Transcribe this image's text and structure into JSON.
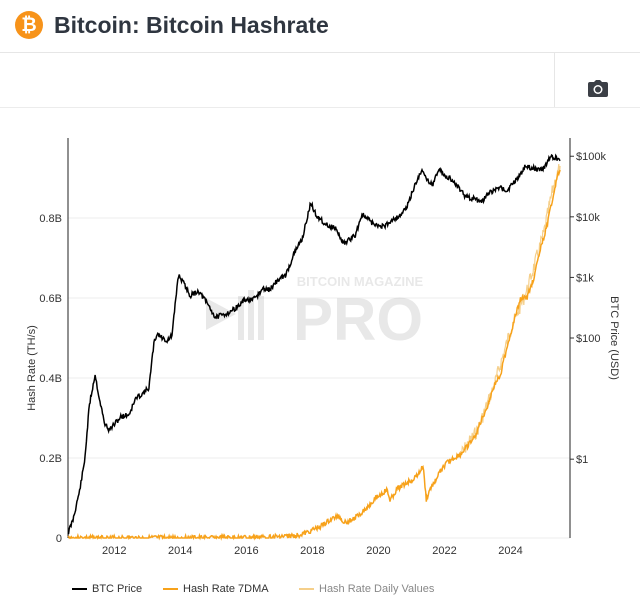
{
  "header": {
    "logo_glyph": "₿",
    "title": "Bitcoin: Bitcoin Hashrate"
  },
  "toolbar": {
    "camera_icon": "camera-icon"
  },
  "watermark": {
    "line1": "BITCOIN MAGAZINE",
    "line2": "PRO"
  },
  "legend": {
    "btc_price": "BTC Price",
    "hash_rate_7dma": "Hash Rate 7DMA",
    "hash_rate_daily": "Hash Rate Daily Values"
  },
  "chart_data": {
    "type": "line",
    "title": "Bitcoin: Bitcoin Hashrate",
    "xlabel": "",
    "ylabel": "Hash Rate (TH/s)",
    "y2label": "BTC Price (USD)",
    "x_ticks": [
      "2012",
      "2014",
      "2016",
      "2018",
      "2020",
      "2022",
      "2024"
    ],
    "y_ticks": [
      "0",
      "0.2B",
      "0.4B",
      "0.6B",
      "0.8B"
    ],
    "y2_ticks": [
      "$1",
      "$100",
      "$1k",
      "$10k",
      "$100k"
    ],
    "y2_scale": "log",
    "xlim": [
      2010.6,
      2025.8
    ],
    "ylim": [
      0,
      1.0
    ],
    "y2lim": [
      0.05,
      200000
    ],
    "grid": true,
    "legend_position": "bottom",
    "colors": {
      "btc_price": "#000000",
      "hash_rate_7dma": "#f7a21b",
      "hash_rate_daily": "#f5cf8a"
    },
    "series": [
      {
        "name": "BTC Price",
        "axis": "right",
        "x": [
          2010.6,
          2010.75,
          2010.95,
          2011.1,
          2011.25,
          2011.42,
          2011.55,
          2011.7,
          2011.85,
          2011.95,
          2012.2,
          2012.45,
          2012.65,
          2012.85,
          2013.05,
          2013.2,
          2013.3,
          2013.45,
          2013.6,
          2013.75,
          2013.9,
          2013.95,
          2014.1,
          2014.3,
          2014.55,
          2014.85,
          2015.0,
          2015.05,
          2015.3,
          2015.5,
          2015.8,
          2015.95,
          2016.2,
          2016.4,
          2016.5,
          2016.7,
          2016.95,
          2017.2,
          2017.45,
          2017.7,
          2017.95,
          2018.1,
          2018.3,
          2018.5,
          2018.7,
          2018.9,
          2019.0,
          2019.3,
          2019.5,
          2019.7,
          2019.9,
          2020.2,
          2020.4,
          2020.6,
          2020.85,
          2021.1,
          2021.3,
          2021.5,
          2021.65,
          2021.85,
          2022.0,
          2022.2,
          2022.45,
          2022.65,
          2022.9,
          2023.1,
          2023.3,
          2023.5,
          2023.7,
          2023.9,
          2024.1,
          2024.2,
          2024.45,
          2024.7,
          2024.9,
          2025.05,
          2025.2,
          2025.35,
          2025.5
        ],
        "values": [
          0.06,
          0.1,
          0.3,
          0.9,
          8,
          25,
          10,
          4,
          3,
          3.5,
          5,
          5.5,
          10,
          12,
          15,
          80,
          120,
          100,
          90,
          110,
          700,
          1100,
          800,
          500,
          600,
          350,
          250,
          220,
          240,
          270,
          350,
          430,
          420,
          550,
          650,
          620,
          900,
          1100,
          2500,
          4500,
          17000,
          11000,
          8500,
          7000,
          6500,
          4000,
          3700,
          5000,
          11000,
          9000,
          7200,
          7000,
          9000,
          10000,
          14000,
          33000,
          58000,
          40000,
          35000,
          63000,
          47000,
          42000,
          30000,
          21000,
          20000,
          17000,
          23000,
          28000,
          30000,
          27000,
          37000,
          43000,
          68000,
          63000,
          58000,
          70000,
          98000,
          96000,
          84000
        ]
      },
      {
        "name": "Hash Rate 7DMA",
        "axis": "left",
        "x": [
          2010.6,
          2012,
          2013,
          2014,
          2015,
          2016,
          2017,
          2017.5,
          2017.8,
          2018.0,
          2018.2,
          2018.45,
          2018.65,
          2018.8,
          2018.95,
          2019.1,
          2019.3,
          2019.5,
          2019.7,
          2019.9,
          2020.1,
          2020.25,
          2020.35,
          2020.6,
          2020.9,
          2021.1,
          2021.25,
          2021.35,
          2021.45,
          2021.55,
          2021.7,
          2021.9,
          2022.1,
          2022.3,
          2022.5,
          2022.7,
          2022.9,
          2023.1,
          2023.3,
          2023.5,
          2023.7,
          2023.9,
          2024.1,
          2024.3,
          2024.5,
          2024.7,
          2024.9,
          2025.1,
          2025.2,
          2025.3,
          2025.4,
          2025.5
        ],
        "values": [
          0.0,
          0.0,
          0.0,
          0.0,
          0.0,
          0.001,
          0.003,
          0.006,
          0.012,
          0.02,
          0.027,
          0.04,
          0.05,
          0.055,
          0.04,
          0.042,
          0.05,
          0.065,
          0.08,
          0.1,
          0.11,
          0.12,
          0.095,
          0.125,
          0.14,
          0.15,
          0.165,
          0.18,
          0.095,
          0.12,
          0.14,
          0.17,
          0.19,
          0.2,
          0.21,
          0.23,
          0.25,
          0.29,
          0.33,
          0.38,
          0.41,
          0.48,
          0.54,
          0.6,
          0.6,
          0.65,
          0.72,
          0.78,
          0.82,
          0.86,
          0.9,
          0.92
        ]
      },
      {
        "name": "Hash Rate Daily Values",
        "axis": "left",
        "x": [
          2022.5,
          2023.0,
          2023.5,
          2024.0,
          2024.5,
          2025.0,
          2025.3,
          2025.5
        ],
        "values": [
          0.21,
          0.27,
          0.38,
          0.52,
          0.62,
          0.76,
          0.88,
          0.93
        ]
      }
    ]
  }
}
